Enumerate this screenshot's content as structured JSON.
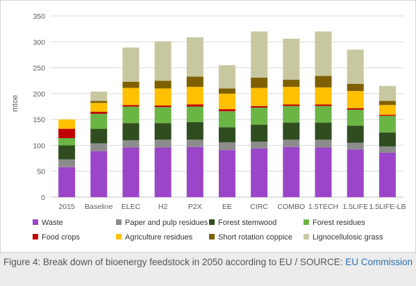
{
  "caption": {
    "text": "Figure 4: Break down of bioenergy feedstock in 2050 according to EU / SOURCE: ",
    "link": "EU Commission"
  },
  "chart_data": {
    "type": "bar",
    "stacked": true,
    "categories": [
      "2015",
      "Baseline",
      "ELEC",
      "H2",
      "P2X",
      "EE",
      "CIRC",
      "COMBO",
      "1.5TECH",
      "1.5LIFE",
      "1.5LIFE-LB"
    ],
    "ylabel": "mtoe",
    "xlabel": "",
    "ylim": [
      0,
      350
    ],
    "yticks": [
      0,
      50,
      100,
      150,
      200,
      250,
      300,
      350
    ],
    "grid": true,
    "legend_position": "bottom",
    "series": [
      {
        "name": "Waste",
        "color": "#9b46c9",
        "values": [
          58,
          89,
          96,
          96,
          97,
          91,
          94,
          97,
          96,
          92,
          86
        ]
      },
      {
        "name": "Paper and pulp residues",
        "color": "#8c8c8c",
        "values": [
          15,
          15,
          14,
          15,
          14,
          15,
          13,
          14,
          15,
          13,
          12
        ]
      },
      {
        "name": "Forest stemwood",
        "color": "#2f4d1e",
        "values": [
          27,
          28,
          33,
          32,
          34,
          29,
          33,
          33,
          33,
          33,
          27
        ]
      },
      {
        "name": "Forest residues",
        "color": "#6bb545",
        "values": [
          14,
          29,
          32,
          31,
          30,
          31,
          33,
          32,
          32,
          31,
          32
        ]
      },
      {
        "name": "Food crops",
        "color": "#c00000",
        "values": [
          18,
          4,
          3,
          3,
          4,
          4,
          3,
          3,
          3,
          3,
          2
        ]
      },
      {
        "name": "Agriculture residues",
        "color": "#ffc000",
        "values": [
          18,
          17,
          33,
          33,
          34,
          30,
          35,
          34,
          33,
          33,
          19
        ]
      },
      {
        "name": "Short rotation coppice",
        "color": "#7f6000",
        "values": [
          0,
          4,
          12,
          15,
          20,
          10,
          20,
          14,
          22,
          14,
          8
        ]
      },
      {
        "name": "Lignocellulosic grass",
        "color": "#c8c8a0",
        "values": [
          0,
          18,
          66,
          76,
          76,
          45,
          89,
          79,
          86,
          66,
          29
        ]
      }
    ]
  }
}
